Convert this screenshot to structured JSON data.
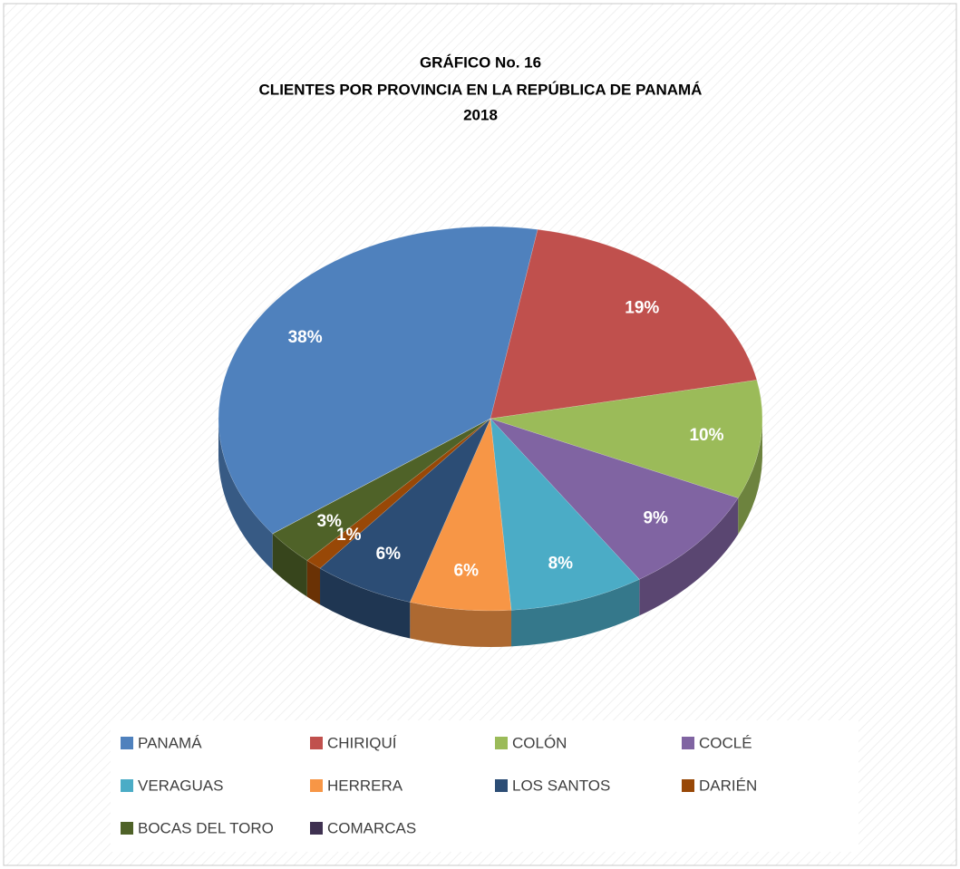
{
  "chart_data": {
    "type": "pie",
    "title": [
      "GRÁFICO  No.  16",
      "CLIENTES  POR PROVINCIA EN LA REPÚBLICA DE PANAMÁ",
      "2018"
    ],
    "categories": [
      "PANAMÁ",
      "CHIRIQUÍ",
      "COLÓN",
      "COCLÉ",
      "VERAGUAS",
      "HERRERA",
      "LOS SANTOS",
      "DARIÉN",
      "BOCAS DEL TORO",
      "COMARCAS"
    ],
    "values": [
      38,
      19,
      10,
      9,
      8,
      6,
      6,
      1,
      3,
      0
    ],
    "value_labels": [
      "38%",
      "19%",
      "10%",
      "9%",
      "8%",
      "6%",
      "6%",
      "1%",
      "3%",
      null
    ],
    "colors": [
      "#4f81bd",
      "#c0504d",
      "#9bbb59",
      "#8064a2",
      "#4bacc6",
      "#f79646",
      "#2c4d75",
      "#984807",
      "#4f6228",
      "#3f3151"
    ],
    "legend": "bottom"
  }
}
